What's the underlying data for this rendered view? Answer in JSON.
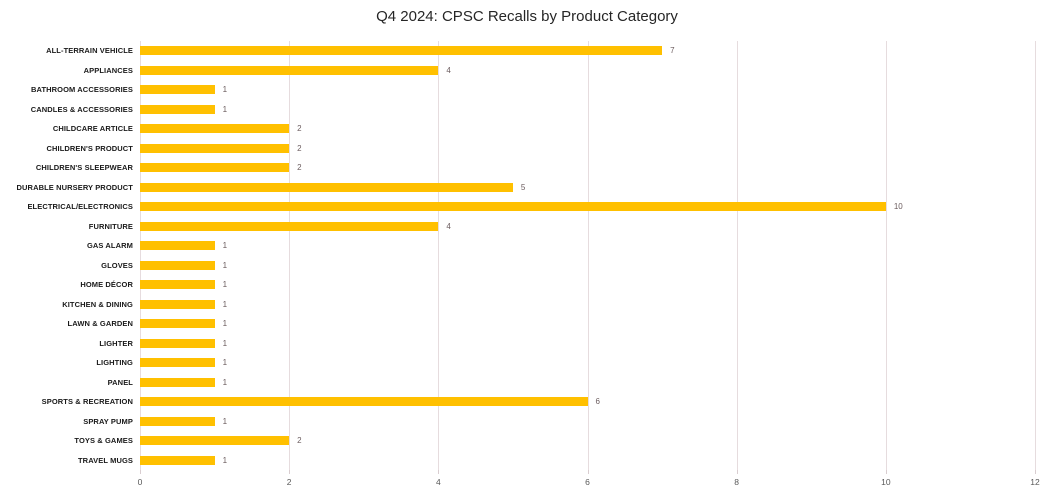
{
  "chart_data": {
    "type": "bar",
    "orientation": "horizontal",
    "title": "Q4 2024: CPSC Recalls by Product Category",
    "categories": [
      "ALL-TERRAIN VEHICLE",
      "APPLIANCES",
      "BATHROOM ACCESSORIES",
      "CANDLES & ACCESSORIES",
      "CHILDCARE ARTICLE",
      "CHILDREN'S PRODUCT",
      "CHILDREN'S SLEEPWEAR",
      "DURABLE NURSERY PRODUCT",
      "ELECTRICAL/ELECTRONICS",
      "FURNITURE",
      "GAS ALARM",
      "GLOVES",
      "HOME DÉCOR",
      "KITCHEN & DINING",
      "LAWN & GARDEN",
      "LIGHTER",
      "LIGHTING",
      "PANEL",
      "SPORTS & RECREATION",
      "SPRAY PUMP",
      "TOYS & GAMES",
      "TRAVEL MUGS"
    ],
    "values": [
      7,
      4,
      1,
      1,
      2,
      2,
      2,
      5,
      10,
      4,
      1,
      1,
      1,
      1,
      1,
      1,
      1,
      1,
      6,
      1,
      2,
      1
    ],
    "data_labels": [
      7,
      4,
      1,
      1,
      2,
      2,
      2,
      5,
      10,
      4,
      1,
      1,
      1,
      1,
      1,
      1,
      1,
      1,
      6,
      1,
      2,
      1
    ],
    "xlabel": "",
    "ylabel": "",
    "xlim": [
      0,
      12
    ],
    "x_ticks": [
      0,
      2,
      4,
      6,
      8,
      10,
      12
    ],
    "grid": "vertical",
    "legend": "none",
    "bar_color": "#FFC000",
    "gridline_color": "#E6DCDE",
    "value_label_color": "#6B5C5E",
    "category_label_color": "#1A1A1A",
    "axis_tick_label_color": "#595959",
    "title_color": "#262626"
  }
}
